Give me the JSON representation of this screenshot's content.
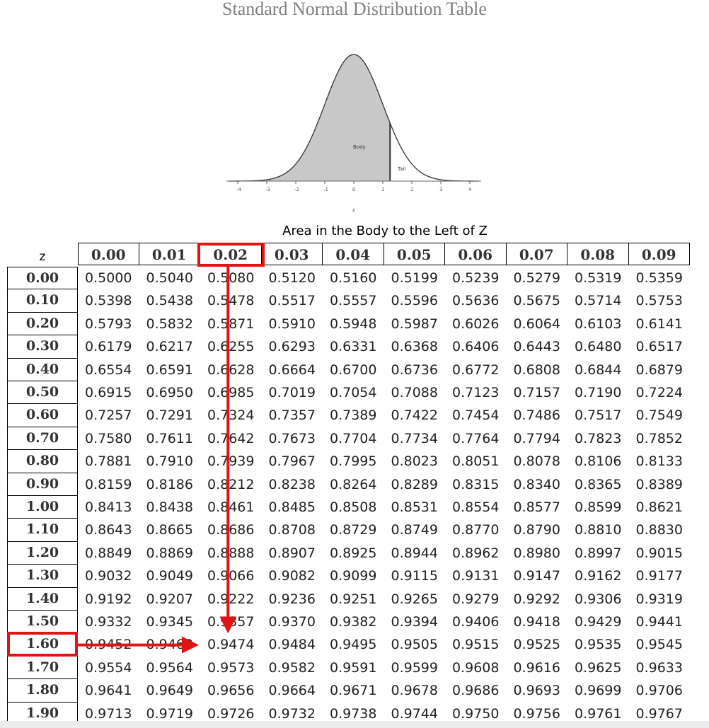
{
  "title": "Standard Normal Distribution Table",
  "figure": {
    "body_label": "Body",
    "tail_label": "Tail",
    "axis_ticks": [
      "-4",
      "-3",
      "-2",
      "-1",
      "0",
      "1",
      "2",
      "3",
      "4"
    ],
    "axis_label": "z"
  },
  "area_label": "Area in the Body to the Left of Z",
  "z_header": "z",
  "columns": [
    "0.00",
    "0.01",
    "0.02",
    "0.03",
    "0.04",
    "0.05",
    "0.06",
    "0.07",
    "0.08",
    "0.09"
  ],
  "rows": [
    {
      "z": "0.00",
      "values": [
        "0.5000",
        "0.5040",
        "0.5080",
        "0.5120",
        "0.5160",
        "0.5199",
        "0.5239",
        "0.5279",
        "0.5319",
        "0.5359"
      ]
    },
    {
      "z": "0.10",
      "values": [
        "0.5398",
        "0.5438",
        "0.5478",
        "0.5517",
        "0.5557",
        "0.5596",
        "0.5636",
        "0.5675",
        "0.5714",
        "0.5753"
      ]
    },
    {
      "z": "0.20",
      "values": [
        "0.5793",
        "0.5832",
        "0.5871",
        "0.5910",
        "0.5948",
        "0.5987",
        "0.6026",
        "0.6064",
        "0.6103",
        "0.6141"
      ]
    },
    {
      "z": "0.30",
      "values": [
        "0.6179",
        "0.6217",
        "0.6255",
        "0.6293",
        "0.6331",
        "0.6368",
        "0.6406",
        "0.6443",
        "0.6480",
        "0.6517"
      ]
    },
    {
      "z": "0.40",
      "values": [
        "0.6554",
        "0.6591",
        "0.6628",
        "0.6664",
        "0.6700",
        "0.6736",
        "0.6772",
        "0.6808",
        "0.6844",
        "0.6879"
      ]
    },
    {
      "z": "0.50",
      "values": [
        "0.6915",
        "0.6950",
        "0.6985",
        "0.7019",
        "0.7054",
        "0.7088",
        "0.7123",
        "0.7157",
        "0.7190",
        "0.7224"
      ]
    },
    {
      "z": "0.60",
      "values": [
        "0.7257",
        "0.7291",
        "0.7324",
        "0.7357",
        "0.7389",
        "0.7422",
        "0.7454",
        "0.7486",
        "0.7517",
        "0.7549"
      ]
    },
    {
      "z": "0.70",
      "values": [
        "0.7580",
        "0.7611",
        "0.7642",
        "0.7673",
        "0.7704",
        "0.7734",
        "0.7764",
        "0.7794",
        "0.7823",
        "0.7852"
      ]
    },
    {
      "z": "0.80",
      "values": [
        "0.7881",
        "0.7910",
        "0.7939",
        "0.7967",
        "0.7995",
        "0.8023",
        "0.8051",
        "0.8078",
        "0.8106",
        "0.8133"
      ]
    },
    {
      "z": "0.90",
      "values": [
        "0.8159",
        "0.8186",
        "0.8212",
        "0.8238",
        "0.8264",
        "0.8289",
        "0.8315",
        "0.8340",
        "0.8365",
        "0.8389"
      ]
    },
    {
      "z": "1.00",
      "values": [
        "0.8413",
        "0.8438",
        "0.8461",
        "0.8485",
        "0.8508",
        "0.8531",
        "0.8554",
        "0.8577",
        "0.8599",
        "0.8621"
      ]
    },
    {
      "z": "1.10",
      "values": [
        "0.8643",
        "0.8665",
        "0.8686",
        "0.8708",
        "0.8729",
        "0.8749",
        "0.8770",
        "0.8790",
        "0.8810",
        "0.8830"
      ]
    },
    {
      "z": "1.20",
      "values": [
        "0.8849",
        "0.8869",
        "0.8888",
        "0.8907",
        "0.8925",
        "0.8944",
        "0.8962",
        "0.8980",
        "0.8997",
        "0.9015"
      ]
    },
    {
      "z": "1.30",
      "values": [
        "0.9032",
        "0.9049",
        "0.9066",
        "0.9082",
        "0.9099",
        "0.9115",
        "0.9131",
        "0.9147",
        "0.9162",
        "0.9177"
      ]
    },
    {
      "z": "1.40",
      "values": [
        "0.9192",
        "0.9207",
        "0.9222",
        "0.9236",
        "0.9251",
        "0.9265",
        "0.9279",
        "0.9292",
        "0.9306",
        "0.9319"
      ]
    },
    {
      "z": "1.50",
      "values": [
        "0.9332",
        "0.9345",
        "0.9357",
        "0.9370",
        "0.9382",
        "0.9394",
        "0.9406",
        "0.9418",
        "0.9429",
        "0.9441"
      ]
    },
    {
      "z": "1.60",
      "values": [
        "0.9452",
        "0.9463",
        "0.9474",
        "0.9484",
        "0.9495",
        "0.9505",
        "0.9515",
        "0.9525",
        "0.9535",
        "0.9545"
      ]
    },
    {
      "z": "1.70",
      "values": [
        "0.9554",
        "0.9564",
        "0.9573",
        "0.9582",
        "0.9591",
        "0.9599",
        "0.9608",
        "0.9616",
        "0.9625",
        "0.9633"
      ]
    },
    {
      "z": "1.80",
      "values": [
        "0.9641",
        "0.9649",
        "0.9656",
        "0.9664",
        "0.9671",
        "0.9678",
        "0.9686",
        "0.9693",
        "0.9699",
        "0.9706"
      ]
    },
    {
      "z": "1.90",
      "values": [
        "0.9713",
        "0.9719",
        "0.9726",
        "0.9732",
        "0.9738",
        "0.9744",
        "0.9750",
        "0.9756",
        "0.9761",
        "0.9767"
      ]
    }
  ],
  "highlight": {
    "column": "0.02",
    "row": "1.60",
    "color": "#e01414"
  }
}
